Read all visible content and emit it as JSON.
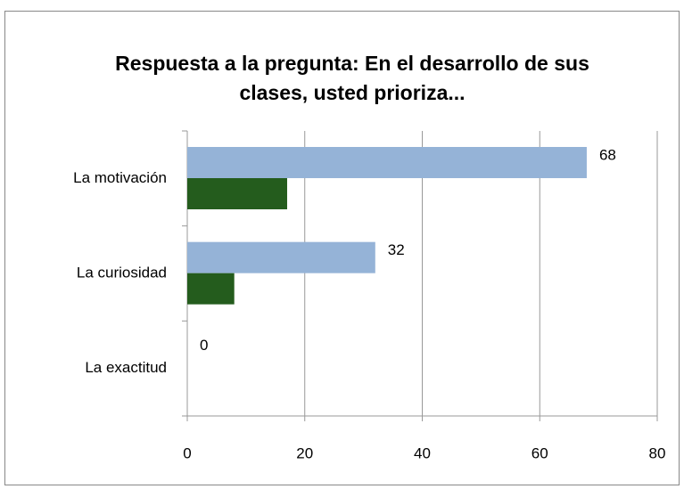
{
  "chart_data": {
    "type": "barh",
    "title": "Respuesta a la pregunta: En el desarrollo de sus clases, usted prioriza...",
    "categories": [
      "La motivación",
      "La curiosidad",
      "La exactitud"
    ],
    "series": [
      {
        "color": "#95b3d7",
        "values": [
          68,
          32,
          0
        ],
        "show_labels": true
      },
      {
        "color": "#245c1d",
        "values": [
          17,
          8,
          0
        ],
        "show_labels": false
      }
    ],
    "xlim": [
      0,
      80
    ],
    "xticks": [
      0,
      20,
      40,
      60,
      80
    ],
    "grid": true
  }
}
